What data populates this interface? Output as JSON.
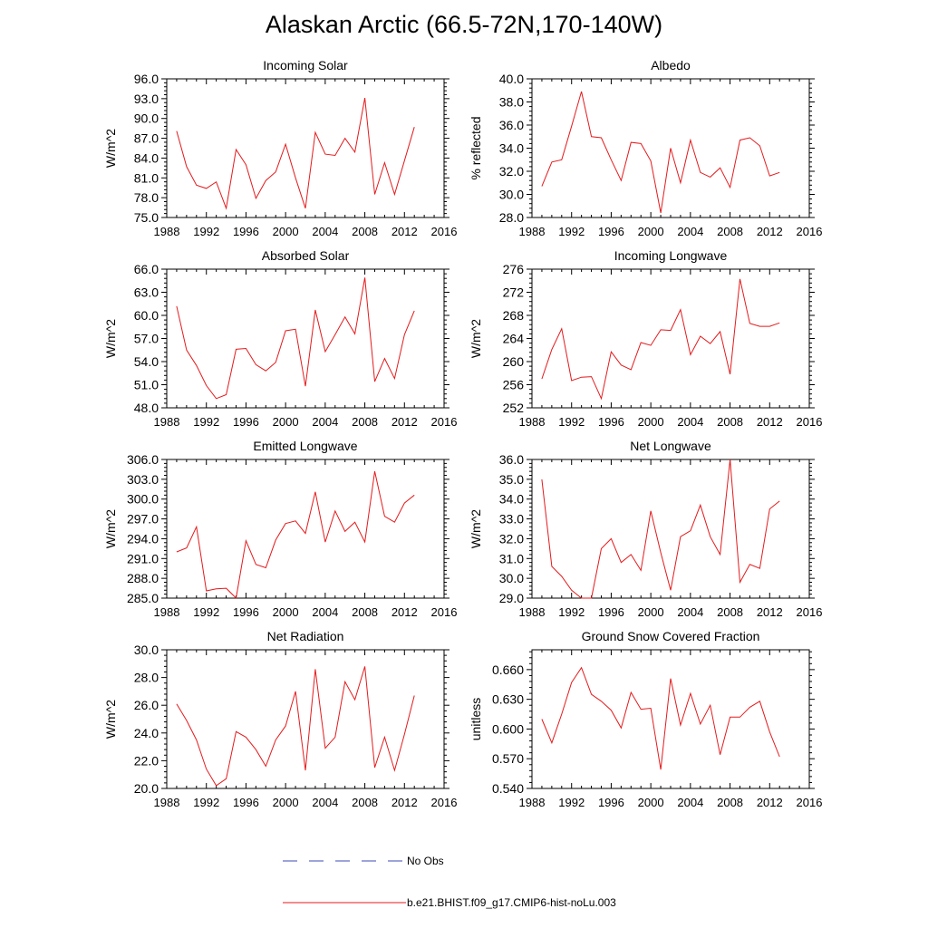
{
  "page_title": "Alaskan Arctic (66.5-72N,170-140W)",
  "colors": {
    "model_line": "#e31a1c",
    "obs_line": "#3b4bb5",
    "axis": "#000000"
  },
  "legend": {
    "obs_label": "No Obs",
    "model_label": "b.e21.BHIST.f09_g17.CMIP6-hist-noLu.003"
  },
  "chart_data": [
    {
      "type": "line",
      "title": "Incoming Solar",
      "xlabel": "",
      "ylabel": "W/m^2",
      "xlim": [
        1988,
        2016
      ],
      "ylim": [
        75,
        96
      ],
      "x_ticks": [
        1988,
        1992,
        1996,
        2000,
        2004,
        2008,
        2012,
        2016
      ],
      "x_tick_labels": [
        "1988",
        "1992",
        "1996",
        "2000",
        "2004",
        "2008",
        "2012",
        "2016"
      ],
      "y_ticks": [
        75,
        78,
        81,
        84,
        87,
        90,
        93,
        96
      ],
      "y_tick_labels": [
        "75.0",
        "78.0",
        "81.0",
        "84.0",
        "87.0",
        "90.0",
        "93.0",
        "96.0"
      ],
      "x": [
        1989,
        1990,
        1991,
        1992,
        1993,
        1994,
        1995,
        1996,
        1997,
        1998,
        1999,
        2000,
        2001,
        2002,
        2003,
        2004,
        2005,
        2006,
        2007,
        2008,
        2009,
        2010,
        2011,
        2012,
        2013
      ],
      "series": [
        {
          "name": "b.e21.BHIST.f09_g17.CMIP6-hist-noLu.003",
          "values": [
            88.1,
            82.7,
            79.9,
            79.4,
            80.4,
            76.4,
            85.3,
            83.0,
            77.9,
            80.6,
            81.9,
            86.1,
            81.0,
            76.4,
            87.9,
            84.6,
            84.4,
            87.0,
            84.9,
            93.1,
            78.5,
            83.3,
            78.5,
            83.6,
            88.7
          ]
        }
      ]
    },
    {
      "type": "line",
      "title": "Albedo",
      "xlabel": "",
      "ylabel": "% reflected",
      "xlim": [
        1988,
        2016
      ],
      "ylim": [
        28,
        40
      ],
      "x_ticks": [
        1988,
        1992,
        1996,
        2000,
        2004,
        2008,
        2012,
        2016
      ],
      "x_tick_labels": [
        "1988",
        "1992",
        "1996",
        "2000",
        "2004",
        "2008",
        "2012",
        "2016"
      ],
      "y_ticks": [
        28,
        30,
        32,
        34,
        36,
        38,
        40
      ],
      "y_tick_labels": [
        "28.0",
        "30.0",
        "32.0",
        "34.0",
        "36.0",
        "38.0",
        "40.0"
      ],
      "x": [
        1989,
        1990,
        1991,
        1992,
        1993,
        1994,
        1995,
        1996,
        1997,
        1998,
        1999,
        2000,
        2001,
        2002,
        2003,
        2004,
        2005,
        2006,
        2007,
        2008,
        2009,
        2010,
        2011,
        2012,
        2013
      ],
      "series": [
        {
          "name": "b.e21.BHIST.f09_g17.CMIP6-hist-noLu.003",
          "values": [
            30.7,
            32.8,
            33.0,
            35.9,
            38.9,
            35.0,
            34.9,
            33.0,
            31.2,
            34.5,
            34.4,
            32.9,
            28.4,
            34.0,
            31.0,
            34.7,
            31.9,
            31.5,
            32.3,
            30.6,
            34.7,
            34.9,
            34.2,
            31.6,
            31.9
          ]
        }
      ]
    },
    {
      "type": "line",
      "title": "Absorbed Solar",
      "xlabel": "",
      "ylabel": "W/m^2",
      "xlim": [
        1988,
        2016
      ],
      "ylim": [
        48,
        66
      ],
      "x_ticks": [
        1988,
        1992,
        1996,
        2000,
        2004,
        2008,
        2012,
        2016
      ],
      "x_tick_labels": [
        "1988",
        "1992",
        "1996",
        "2000",
        "2004",
        "2008",
        "2012",
        "2016"
      ],
      "y_ticks": [
        48,
        51,
        54,
        57,
        60,
        63,
        66
      ],
      "y_tick_labels": [
        "48.0",
        "51.0",
        "54.0",
        "57.0",
        "60.0",
        "63.0",
        "66.0"
      ],
      "x": [
        1989,
        1990,
        1991,
        1992,
        1993,
        1994,
        1995,
        1996,
        1997,
        1998,
        1999,
        2000,
        2001,
        2002,
        2003,
        2004,
        2005,
        2006,
        2007,
        2008,
        2009,
        2010,
        2011,
        2012,
        2013
      ],
      "series": [
        {
          "name": "b.e21.BHIST.f09_g17.CMIP6-hist-noLu.003",
          "values": [
            61.2,
            55.5,
            53.5,
            50.9,
            49.2,
            49.7,
            55.6,
            55.7,
            53.6,
            52.8,
            53.9,
            58.0,
            58.2,
            50.8,
            60.7,
            55.3,
            57.5,
            59.8,
            57.6,
            64.9,
            51.4,
            54.4,
            51.8,
            57.5,
            60.6
          ]
        }
      ]
    },
    {
      "type": "line",
      "title": "Incoming Longwave",
      "xlabel": "",
      "ylabel": "W/m^2",
      "xlim": [
        1988,
        2016
      ],
      "ylim": [
        252,
        276
      ],
      "x_ticks": [
        1988,
        1992,
        1996,
        2000,
        2004,
        2008,
        2012,
        2016
      ],
      "x_tick_labels": [
        "1988",
        "1992",
        "1996",
        "2000",
        "2004",
        "2008",
        "2012",
        "2016"
      ],
      "y_ticks": [
        252,
        256,
        260,
        264,
        268,
        272,
        276
      ],
      "y_tick_labels": [
        "252",
        "256",
        "260",
        "264",
        "268",
        "272",
        "276"
      ],
      "x": [
        1989,
        1990,
        1991,
        1992,
        1993,
        1994,
        1995,
        1996,
        1997,
        1998,
        1999,
        2000,
        2001,
        2002,
        2003,
        2004,
        2005,
        2006,
        2007,
        2008,
        2009,
        2010,
        2011,
        2012,
        2013
      ],
      "series": [
        {
          "name": "b.e21.BHIST.f09_g17.CMIP6-hist-noLu.003",
          "values": [
            257.0,
            262.1,
            265.7,
            256.7,
            257.3,
            257.4,
            253.6,
            261.7,
            259.4,
            258.6,
            263.3,
            262.8,
            265.5,
            265.4,
            269.0,
            261.2,
            264.4,
            263.1,
            265.2,
            257.8,
            274.3,
            266.6,
            266.1,
            266.1,
            266.7
          ]
        }
      ]
    },
    {
      "type": "line",
      "title": "Emitted Longwave",
      "xlabel": "",
      "ylabel": "W/m^2",
      "xlim": [
        1988,
        2016
      ],
      "ylim": [
        285,
        306
      ],
      "x_ticks": [
        1988,
        1992,
        1996,
        2000,
        2004,
        2008,
        2012,
        2016
      ],
      "x_tick_labels": [
        "1988",
        "1992",
        "1996",
        "2000",
        "2004",
        "2008",
        "2012",
        "2016"
      ],
      "y_ticks": [
        285,
        288,
        291,
        294,
        297,
        300,
        303,
        306
      ],
      "y_tick_labels": [
        "285.0",
        "288.0",
        "291.0",
        "294.0",
        "297.0",
        "300.0",
        "303.0",
        "306.0"
      ],
      "x": [
        1989,
        1990,
        1991,
        1992,
        1993,
        1994,
        1995,
        1996,
        1997,
        1998,
        1999,
        2000,
        2001,
        2002,
        2003,
        2004,
        2005,
        2006,
        2007,
        2008,
        2009,
        2010,
        2011,
        2012,
        2013
      ],
      "series": [
        {
          "name": "b.e21.BHIST.f09_g17.CMIP6-hist-noLu.003",
          "values": [
            292.0,
            292.6,
            295.8,
            286.1,
            286.4,
            286.5,
            285.0,
            293.7,
            290.1,
            289.6,
            293.8,
            296.3,
            296.7,
            294.8,
            301.1,
            293.5,
            298.2,
            295.1,
            296.5,
            293.5,
            304.2,
            297.4,
            296.5,
            299.4,
            300.6
          ]
        }
      ]
    },
    {
      "type": "line",
      "title": "Net Longwave",
      "xlabel": "",
      "ylabel": "W/m^2",
      "xlim": [
        1988,
        2016
      ],
      "ylim": [
        29,
        36
      ],
      "x_ticks": [
        1988,
        1992,
        1996,
        2000,
        2004,
        2008,
        2012,
        2016
      ],
      "x_tick_labels": [
        "1988",
        "1992",
        "1996",
        "2000",
        "2004",
        "2008",
        "2012",
        "2016"
      ],
      "y_ticks": [
        29,
        30,
        31,
        32,
        33,
        34,
        35,
        36
      ],
      "y_tick_labels": [
        "29.0",
        "30.0",
        "31.0",
        "32.0",
        "33.0",
        "34.0",
        "35.0",
        "36.0"
      ],
      "x": [
        1989,
        1990,
        1991,
        1992,
        1993,
        1994,
        1995,
        1996,
        1997,
        1998,
        1999,
        2000,
        2001,
        2002,
        2003,
        2004,
        2005,
        2006,
        2007,
        2008,
        2009,
        2010,
        2011,
        2012,
        2013
      ],
      "series": [
        {
          "name": "b.e21.BHIST.f09_g17.CMIP6-hist-noLu.003",
          "values": [
            35.0,
            30.6,
            30.1,
            29.4,
            29.0,
            29.0,
            31.5,
            32.0,
            30.8,
            31.2,
            30.4,
            33.4,
            31.3,
            29.4,
            32.1,
            32.4,
            33.7,
            32.1,
            31.2,
            36.0,
            29.8,
            30.7,
            30.5,
            33.5,
            33.9
          ]
        }
      ]
    },
    {
      "type": "line",
      "title": "Net Radiation",
      "xlabel": "",
      "ylabel": "W/m^2",
      "xlim": [
        1988,
        2016
      ],
      "ylim": [
        20,
        30
      ],
      "x_ticks": [
        1988,
        1992,
        1996,
        2000,
        2004,
        2008,
        2012,
        2016
      ],
      "x_tick_labels": [
        "1988",
        "1992",
        "1996",
        "2000",
        "2004",
        "2008",
        "2012",
        "2016"
      ],
      "y_ticks": [
        20,
        22,
        24,
        26,
        28,
        30
      ],
      "y_tick_labels": [
        "20.0",
        "22.0",
        "24.0",
        "26.0",
        "28.0",
        "30.0"
      ],
      "x": [
        1989,
        1990,
        1991,
        1992,
        1993,
        1994,
        1995,
        1996,
        1997,
        1998,
        1999,
        2000,
        2001,
        2002,
        2003,
        2004,
        2005,
        2006,
        2007,
        2008,
        2009,
        2010,
        2011,
        2012,
        2013
      ],
      "series": [
        {
          "name": "b.e21.BHIST.f09_g17.CMIP6-hist-noLu.003",
          "values": [
            26.1,
            24.9,
            23.5,
            21.4,
            20.2,
            20.7,
            24.1,
            23.7,
            22.8,
            21.6,
            23.5,
            24.5,
            27.0,
            21.3,
            28.6,
            22.9,
            23.7,
            27.7,
            26.4,
            28.8,
            21.5,
            23.7,
            21.3,
            23.9,
            26.7
          ]
        }
      ]
    },
    {
      "type": "line",
      "title": "Ground Snow Covered Fraction",
      "xlabel": "",
      "ylabel": "unitless",
      "xlim": [
        1988,
        2016
      ],
      "ylim": [
        0.54,
        0.68
      ],
      "x_ticks": [
        1988,
        1992,
        1996,
        2000,
        2004,
        2008,
        2012,
        2016
      ],
      "x_tick_labels": [
        "1988",
        "1992",
        "1996",
        "2000",
        "2004",
        "2008",
        "2012",
        "2016"
      ],
      "y_ticks": [
        0.54,
        0.57,
        0.6,
        0.63,
        0.66
      ],
      "y_tick_labels": [
        "0.540",
        "0.570",
        "0.600",
        "0.630",
        "0.660"
      ],
      "x": [
        1989,
        1990,
        1991,
        1992,
        1993,
        1994,
        1995,
        1996,
        1997,
        1998,
        1999,
        2000,
        2001,
        2002,
        2003,
        2004,
        2005,
        2006,
        2007,
        2008,
        2009,
        2010,
        2011,
        2012,
        2013
      ],
      "series": [
        {
          "name": "b.e21.BHIST.f09_g17.CMIP6-hist-noLu.003",
          "values": [
            0.61,
            0.586,
            0.615,
            0.647,
            0.662,
            0.635,
            0.628,
            0.619,
            0.601,
            0.637,
            0.62,
            0.621,
            0.559,
            0.651,
            0.604,
            0.636,
            0.605,
            0.624,
            0.574,
            0.612,
            0.612,
            0.622,
            0.628,
            0.597,
            0.572
          ]
        }
      ]
    }
  ]
}
